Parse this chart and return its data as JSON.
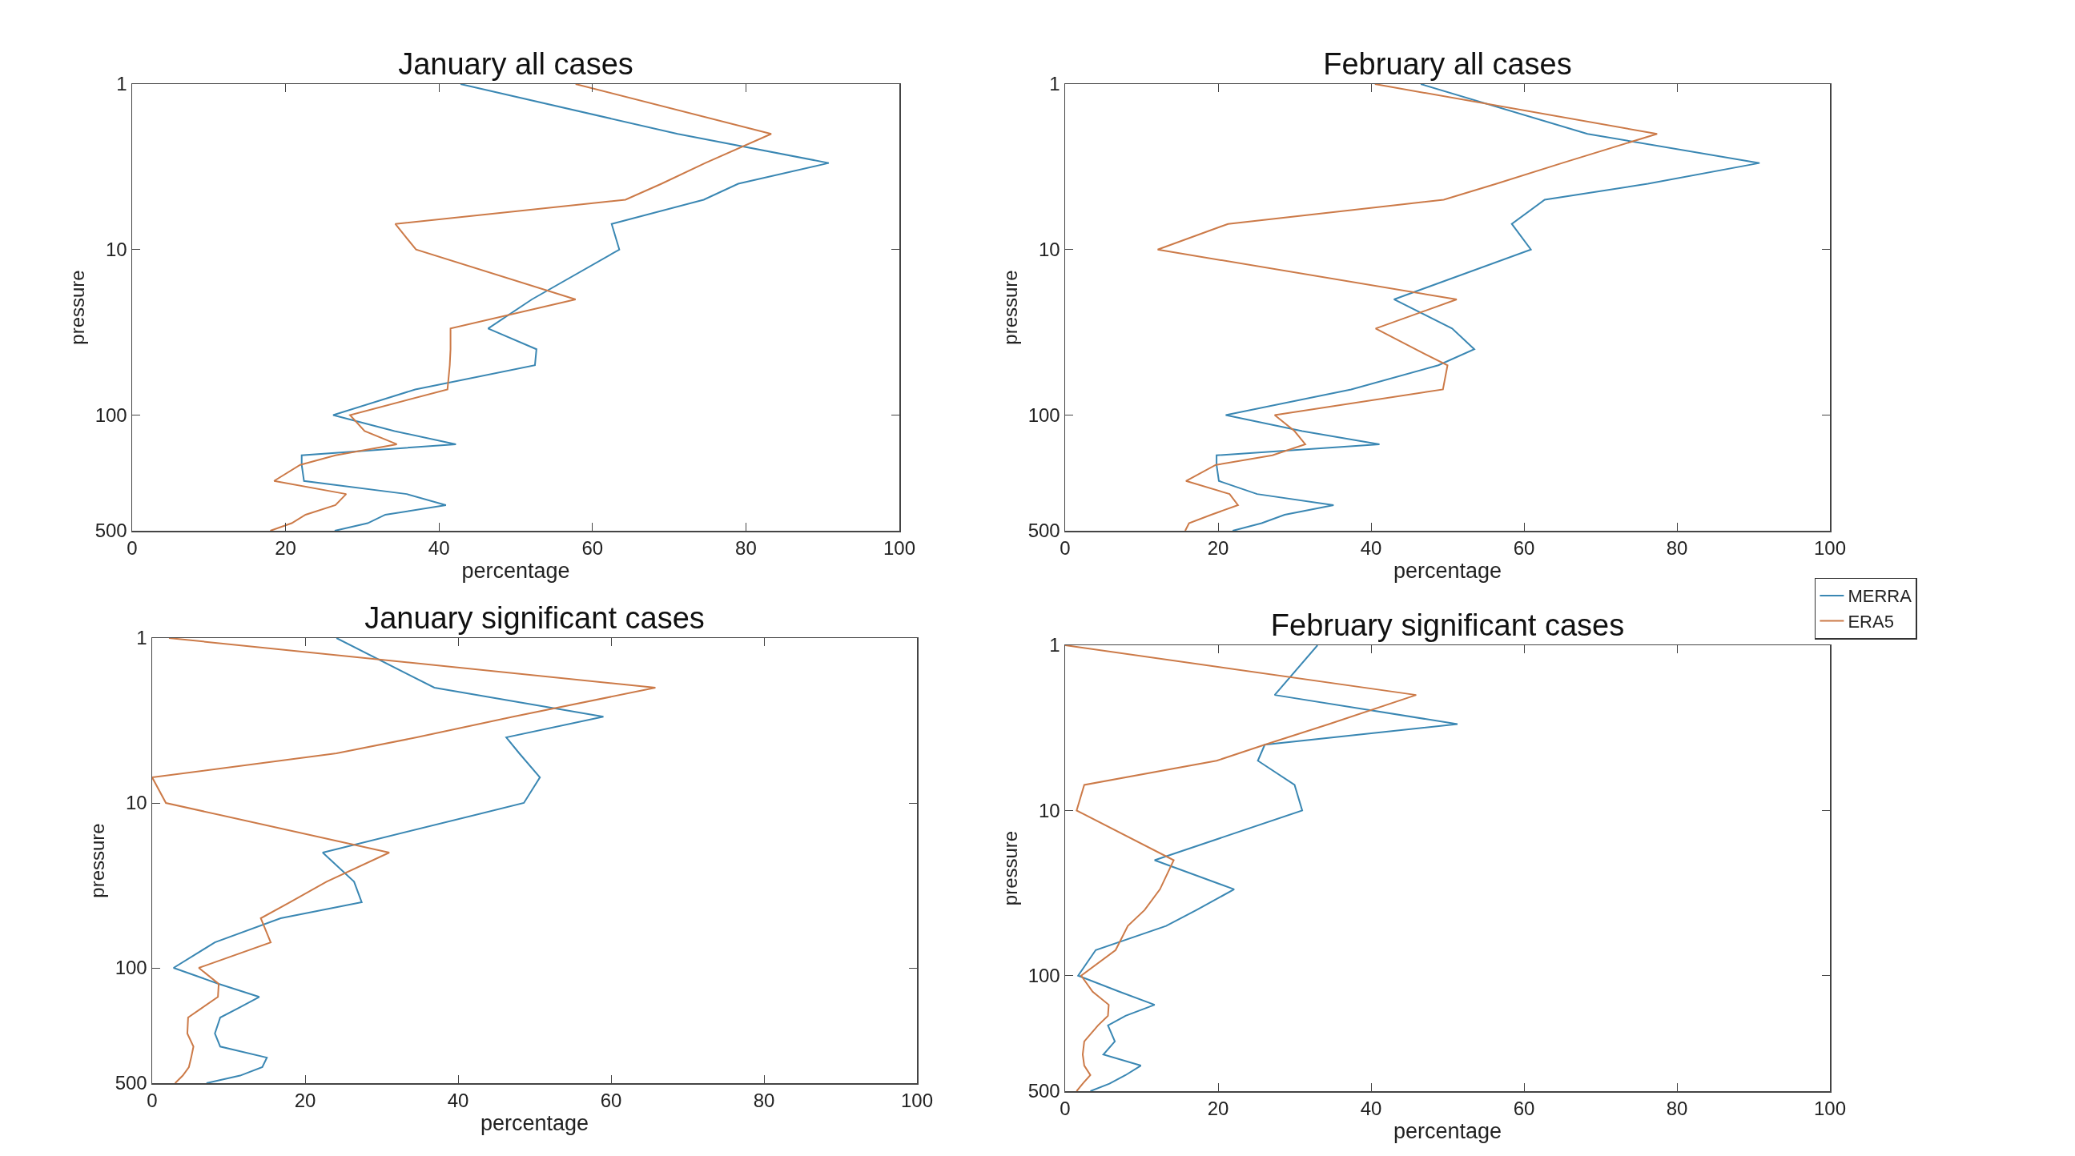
{
  "chart_data": [
    {
      "type": "line",
      "title": "January all cases",
      "xlabel": "percentage",
      "ylabel": "pressure",
      "log": "y",
      "xlim": [
        0,
        100
      ],
      "xticks": [
        0,
        20,
        40,
        60,
        80,
        100
      ],
      "ylim": [
        500,
        1
      ],
      "yticks": [
        1,
        10,
        100,
        500
      ],
      "grid": false,
      "legend": false,
      "series": [
        {
          "color": "#3a87b3",
          "x": [
            42.8,
            71.1,
            90.8,
            79.0,
            74.5,
            62.5,
            63.5,
            52.1,
            46.4,
            52.7,
            52.5,
            36.9,
            26.2,
            34.2,
            42.2,
            22.1,
            22.1,
            22.4,
            35.8,
            40.9,
            33.0,
            30.7,
            26.4
          ],
          "values": [
            1,
            2,
            3,
            4,
            5,
            7,
            10,
            20,
            30,
            40,
            50,
            70,
            100,
            125,
            150,
            175,
            200,
            250,
            300,
            350,
            400,
            450,
            500
          ]
        },
        {
          "color": "#cc7a48",
          "x": [
            57.8,
            83.3,
            74.7,
            69.0,
            64.3,
            34.3,
            37.0,
            57.8,
            41.5,
            41.5,
            41.4,
            41.1,
            28.4,
            30.3,
            34.5,
            26.5,
            21.9,
            18.5,
            27.9,
            26.5,
            22.6,
            20.8,
            18.0
          ],
          "values": [
            1,
            2,
            3,
            4,
            5,
            7,
            10,
            20,
            30,
            40,
            50,
            70,
            100,
            125,
            150,
            175,
            200,
            250,
            300,
            350,
            400,
            450,
            500
          ]
        }
      ]
    },
    {
      "type": "line",
      "title": "February all cases",
      "xlabel": "percentage",
      "ylabel": "pressure",
      "log": "y",
      "xlim": [
        0,
        100
      ],
      "xticks": [
        0,
        20,
        40,
        60,
        80,
        100
      ],
      "ylim": [
        500,
        1
      ],
      "yticks": [
        1,
        10,
        100,
        500
      ],
      "grid": false,
      "legend": "bottom right",
      "series": [
        {
          "name": "MERRA",
          "color": "#3a87b3",
          "x": [
            46.5,
            68.3,
            90.8,
            76.2,
            62.7,
            58.4,
            60.9,
            43.0,
            50.6,
            53.5,
            48.8,
            37.4,
            21.0,
            31.0,
            41.1,
            19.8,
            19.8,
            20.1,
            25.1,
            35.1,
            28.7,
            25.7,
            21.9
          ],
          "values": [
            1,
            2,
            3,
            4,
            5,
            7,
            10,
            20,
            30,
            40,
            50,
            70,
            100,
            125,
            150,
            175,
            200,
            250,
            300,
            350,
            400,
            450,
            500
          ]
        },
        {
          "name": "ERA5",
          "color": "#cc7a48",
          "x": [
            40.5,
            77.4,
            65.0,
            56.4,
            49.5,
            21.3,
            12.1,
            51.2,
            40.6,
            45.8,
            50.0,
            49.4,
            27.4,
            30.0,
            31.4,
            27.1,
            19.7,
            15.8,
            21.5,
            22.6,
            19.1,
            16.2,
            15.7
          ],
          "values": [
            1,
            2,
            3,
            4,
            5,
            7,
            10,
            20,
            30,
            40,
            50,
            70,
            100,
            125,
            150,
            175,
            200,
            250,
            300,
            350,
            400,
            450,
            500
          ]
        }
      ]
    },
    {
      "type": "line",
      "title": "January significant cases",
      "xlabel": "percentage",
      "ylabel": "pressure",
      "log": "y",
      "xlim": [
        0,
        100
      ],
      "xticks": [
        0,
        20,
        40,
        60,
        80,
        100
      ],
      "ylim": [
        500,
        1
      ],
      "yticks": [
        1,
        10,
        100,
        500
      ],
      "grid": false,
      "legend": false,
      "series": [
        {
          "color": "#3a87b3",
          "x": [
            24.1,
            36.9,
            59.0,
            46.3,
            48.0,
            50.7,
            48.6,
            22.3,
            26.4,
            27.4,
            16.8,
            8.2,
            2.8,
            8.7,
            14.0,
            11.3,
            8.9,
            8.2,
            8.9,
            15.0,
            14.4,
            11.5,
            7.1
          ],
          "values": [
            1,
            2,
            3,
            4,
            5,
            7,
            10,
            20,
            30,
            40,
            50,
            70,
            100,
            125,
            150,
            175,
            200,
            250,
            300,
            350,
            400,
            450,
            500
          ]
        },
        {
          "color": "#cc7a48",
          "x": [
            2.2,
            65.8,
            47.2,
            34.6,
            24.1,
            0,
            1.8,
            31.0,
            22.8,
            18.0,
            14.2,
            15.5,
            6.1,
            8.7,
            8.6,
            6.5,
            4.7,
            4.6,
            5.4,
            5.1,
            4.8,
            4.0,
            3.0
          ],
          "values": [
            1,
            2,
            3,
            4,
            5,
            7,
            10,
            20,
            30,
            40,
            50,
            70,
            100,
            125,
            150,
            175,
            200,
            250,
            300,
            350,
            400,
            450,
            500
          ]
        }
      ]
    },
    {
      "type": "line",
      "title": "February significant cases",
      "xlabel": "percentage",
      "ylabel": "pressure",
      "log": "y",
      "xlim": [
        0,
        100
      ],
      "xticks": [
        0,
        20,
        40,
        60,
        80,
        100
      ],
      "ylim": [
        500,
        1
      ],
      "yticks": [
        1,
        10,
        100,
        500
      ],
      "grid": false,
      "legend": false,
      "series": [
        {
          "color": "#3a87b3",
          "x": [
            33.0,
            27.4,
            51.3,
            26.1,
            25.2,
            30.0,
            31.0,
            11.7,
            22.1,
            17.2,
            13.2,
            4.0,
            1.7,
            7.1,
            11.7,
            7.9,
            5.6,
            6.5,
            5.0,
            9.9,
            7.9,
            5.8,
            3.3
          ],
          "values": [
            1,
            2,
            3,
            4,
            5,
            7,
            10,
            20,
            30,
            40,
            50,
            70,
            100,
            125,
            150,
            175,
            200,
            250,
            300,
            350,
            400,
            450,
            500
          ]
        },
        {
          "color": "#cc7a48",
          "x": [
            0,
            45.9,
            34.5,
            26.1,
            19.8,
            2.5,
            1.5,
            14.2,
            12.4,
            10.4,
            8.2,
            6.6,
            2.1,
            3.6,
            5.7,
            5.6,
            4.3,
            2.5,
            2.3,
            2.5,
            3.3,
            2.3,
            1.5
          ],
          "values": [
            1,
            2,
            3,
            4,
            5,
            7,
            10,
            20,
            30,
            40,
            50,
            70,
            100,
            125,
            150,
            175,
            200,
            250,
            300,
            350,
            400,
            450,
            500
          ]
        }
      ]
    }
  ]
}
